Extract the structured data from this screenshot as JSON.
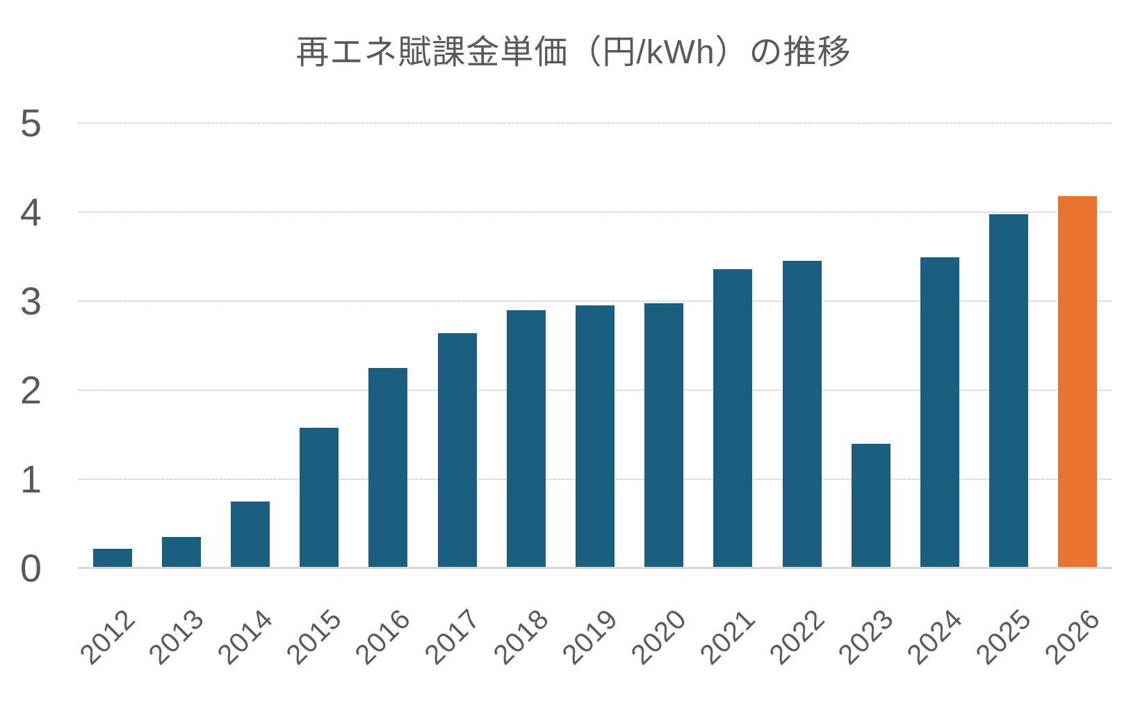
{
  "title": "再エネ賦課金単価（円/kWh）の推移",
  "colors": {
    "bar": "#1a5f7f",
    "highlight_bar": "#e8742f",
    "gridline": "#d9d9d9",
    "axis_line": "#d9d9d9",
    "text": "#595959"
  },
  "chart_data": {
    "type": "bar",
    "title": "再エネ賦課金単価（円/kWh）の推移",
    "categories": [
      "2012",
      "2013",
      "2014",
      "2015",
      "2016",
      "2017",
      "2018",
      "2019",
      "2020",
      "2021",
      "2022",
      "2023",
      "2024",
      "2025",
      "2026"
    ],
    "values": [
      0.22,
      0.35,
      0.75,
      1.58,
      2.25,
      2.64,
      2.9,
      2.95,
      2.98,
      3.36,
      3.45,
      1.4,
      3.49,
      3.98,
      4.18
    ],
    "highlight_category": "2026",
    "xlabel": "",
    "ylabel": "",
    "ylim": [
      0,
      5
    ],
    "yticks": [
      0,
      1,
      2,
      3,
      4,
      5
    ],
    "grid": "horizontal",
    "legend": "none",
    "x_tick_rotation_deg": 45
  }
}
